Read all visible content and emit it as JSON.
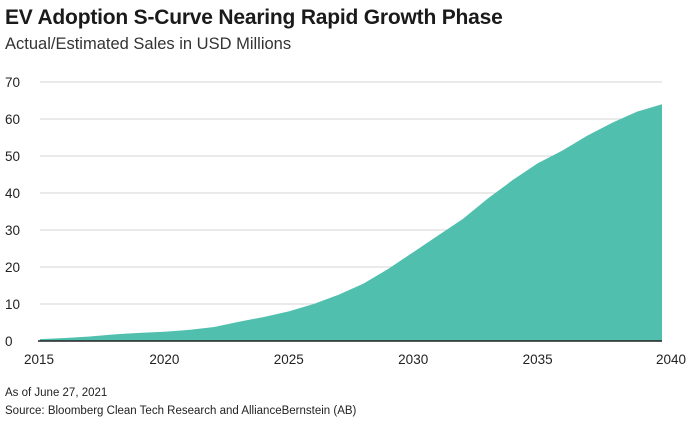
{
  "chart_data": {
    "type": "area",
    "title": "EV Adoption S-Curve Nearing Rapid Growth Phase",
    "subtitle": "Actual/Estimated Sales in USD Millions",
    "xlabel": "",
    "ylabel": "",
    "x": [
      2015,
      2016,
      2017,
      2018,
      2019,
      2020,
      2021,
      2022,
      2023,
      2024,
      2025,
      2026,
      2027,
      2028,
      2029,
      2030,
      2031,
      2032,
      2033,
      2034,
      2035,
      2036,
      2037,
      2038,
      2039,
      2040
    ],
    "series": [
      {
        "values": [
          0.5,
          0.8,
          1.2,
          1.8,
          2.2,
          2.5,
          3.0,
          3.8,
          5.2,
          6.5,
          8.0,
          10.0,
          12.5,
          15.5,
          19.5,
          24.0,
          28.5,
          33.0,
          38.5,
          43.5,
          48.0,
          51.5,
          55.5,
          59.0,
          62.0,
          64.0
        ]
      }
    ],
    "xlim": [
      2015,
      2040
    ],
    "ylim": [
      0,
      70
    ],
    "x_ticks": [
      2015,
      2020,
      2025,
      2030,
      2035,
      2040
    ],
    "y_ticks": [
      0,
      10,
      20,
      30,
      40,
      50,
      60,
      70
    ],
    "grid": "horizontal",
    "legend": "none",
    "fill_color": "#50bfae",
    "grid_color": "#d6d6d6",
    "axis_color": "#222222"
  },
  "footnotes": {
    "as_of": "As of June 27, 2021",
    "source": "Source: Bloomberg Clean Tech Research and AllianceBernstein (AB)"
  }
}
